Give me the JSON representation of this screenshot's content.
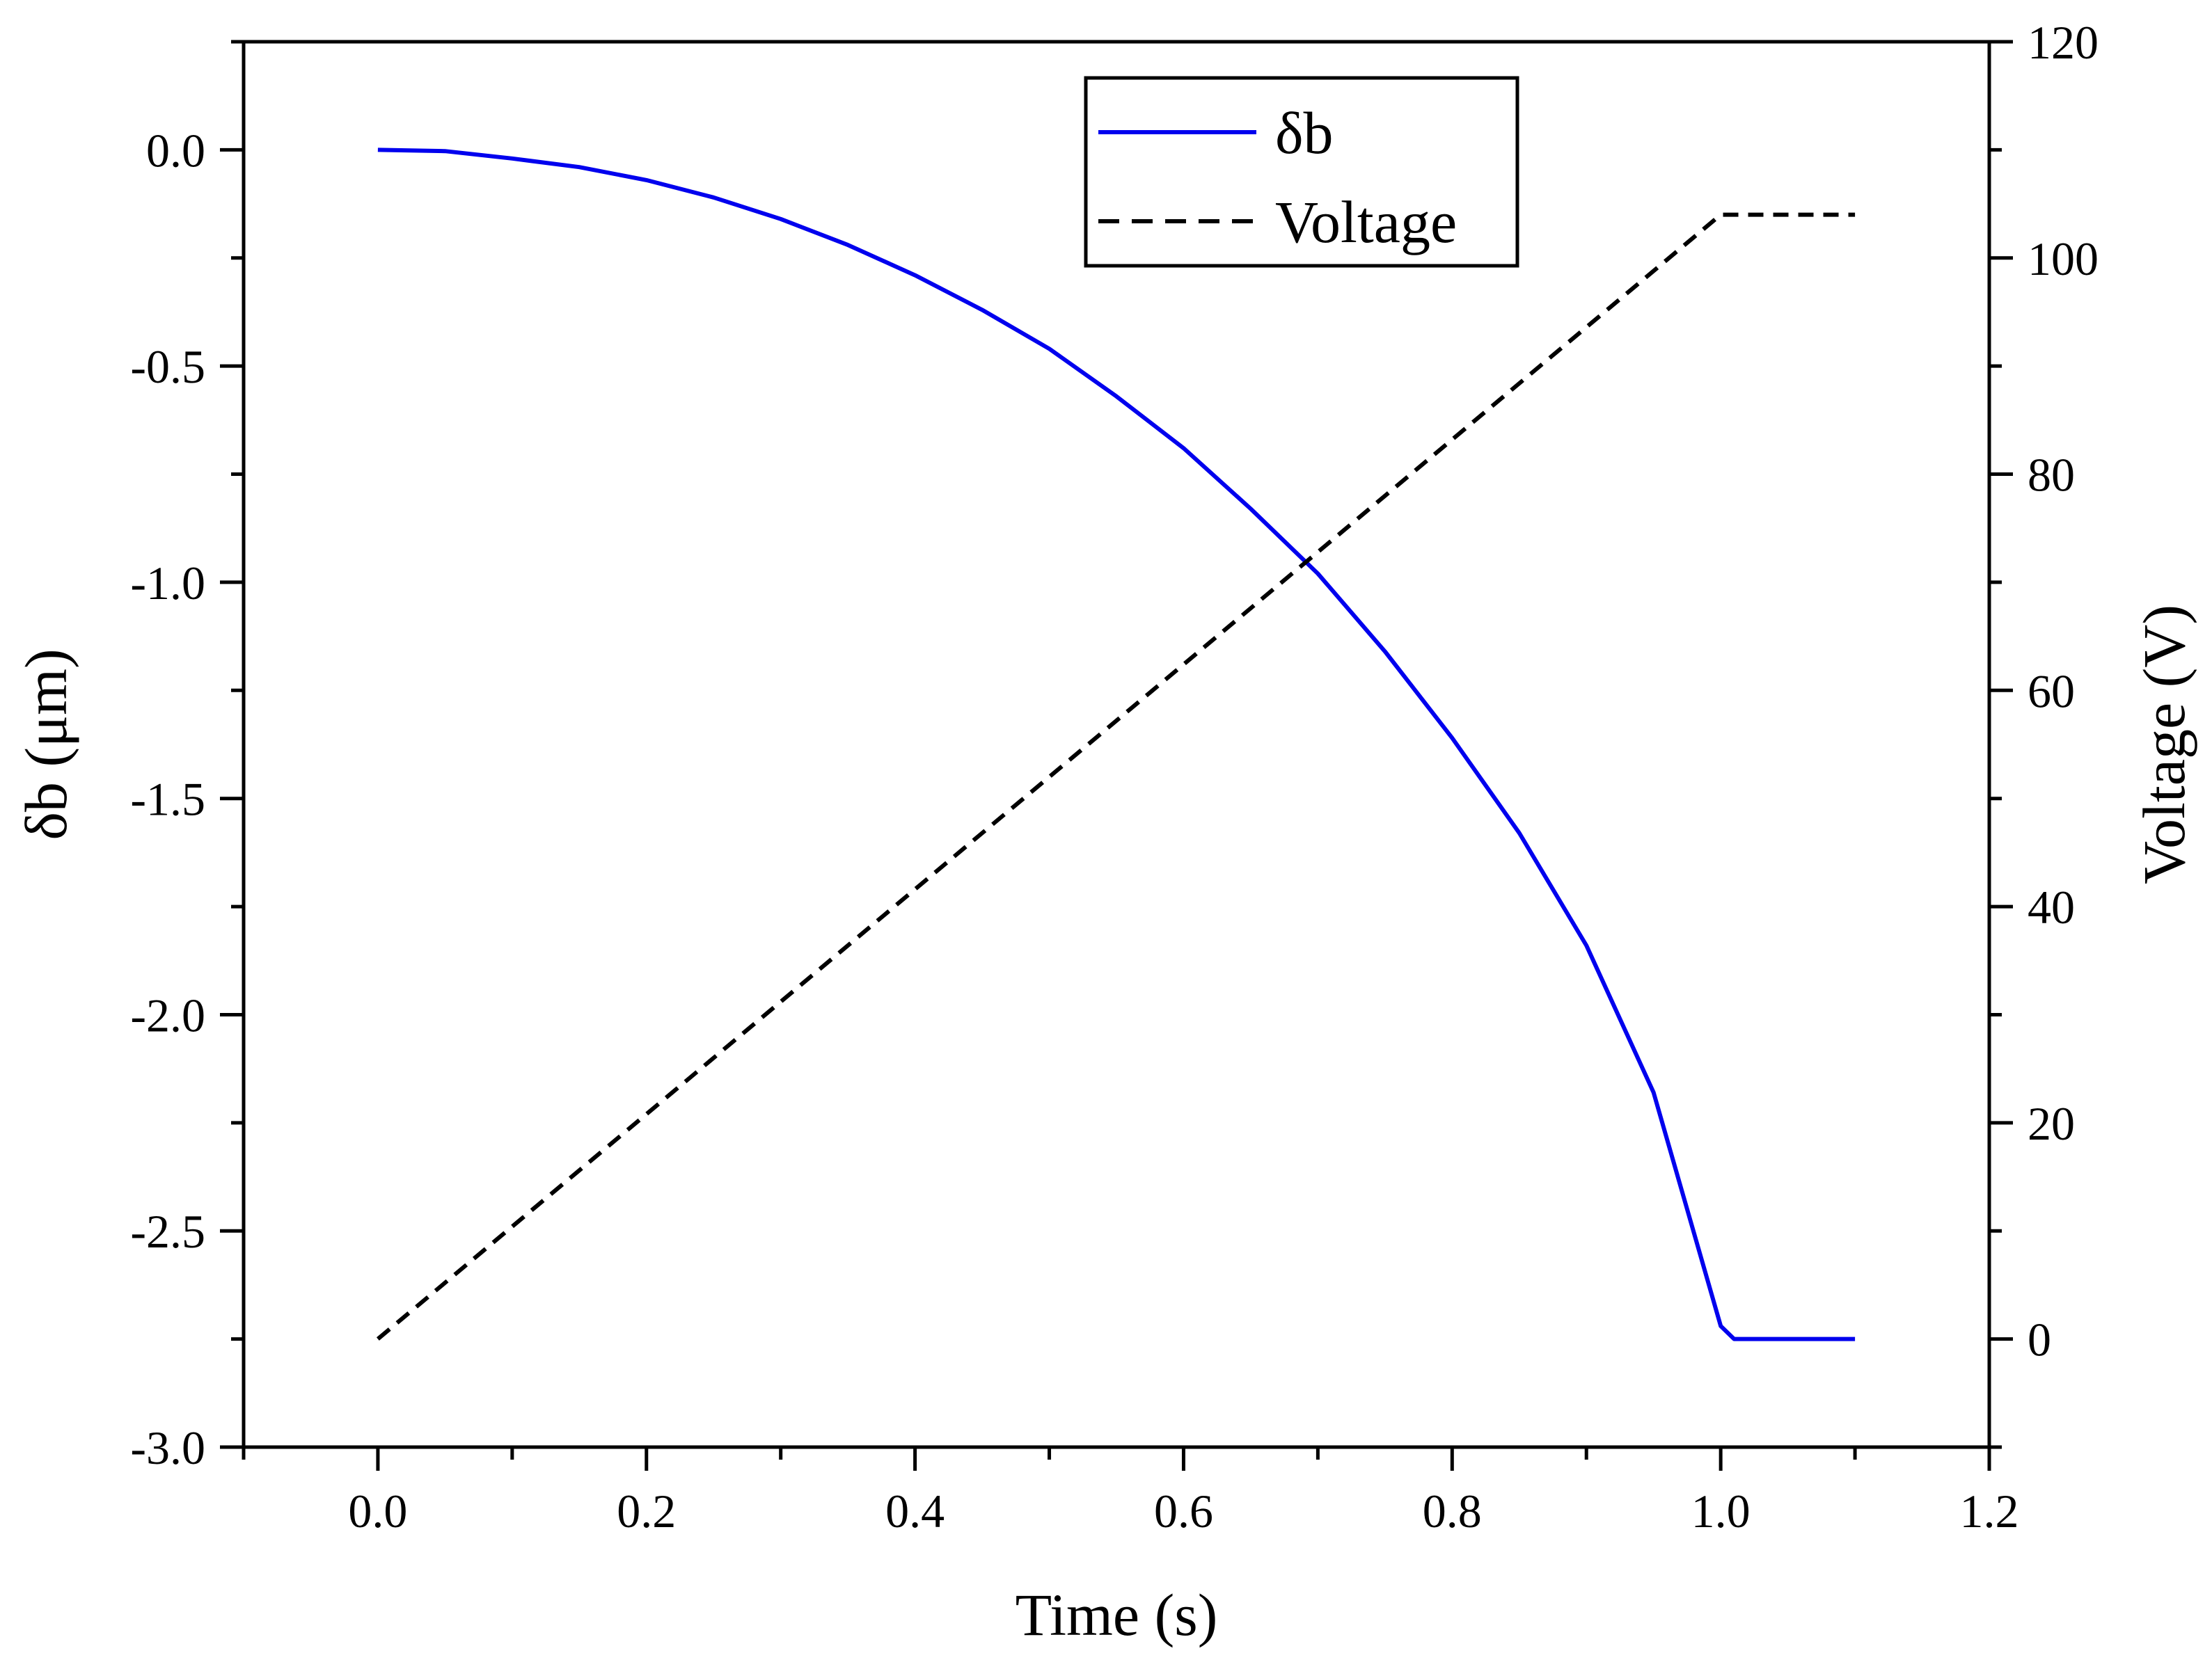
{
  "chart_data": {
    "type": "line",
    "title": "",
    "xlabel": "Time (s)",
    "ylabel_left": "δb (μm)",
    "ylabel_right": "Voltage (V)",
    "xlim": [
      -0.1,
      1.2
    ],
    "ylim_left": [
      -3.0,
      0.25
    ],
    "ylim_right": [
      -10,
      120
    ],
    "x_ticks": [
      "0.0",
      "0.2",
      "0.4",
      "0.6",
      "0.8",
      "1.0",
      "1.2"
    ],
    "x_tick_values": [
      0.0,
      0.2,
      0.4,
      0.6,
      0.8,
      1.0,
      1.2
    ],
    "y_left_ticks": [
      "0.0",
      "-0.5",
      "-1.0",
      "-1.5",
      "-2.0",
      "-2.5",
      "-3.0"
    ],
    "y_left_tick_values": [
      0.0,
      -0.5,
      -1.0,
      -1.5,
      -2.0,
      -2.5,
      -3.0
    ],
    "y_right_ticks": [
      "0",
      "20",
      "40",
      "60",
      "80",
      "100",
      "120"
    ],
    "y_right_tick_values": [
      0,
      20,
      40,
      60,
      80,
      100,
      120
    ],
    "grid": false,
    "legend_position": "top-center",
    "series": [
      {
        "name": "δb",
        "axis": "left",
        "color": "#0000ee",
        "style": "solid",
        "x": [
          0.0,
          0.05,
          0.1,
          0.15,
          0.2,
          0.25,
          0.3,
          0.35,
          0.4,
          0.45,
          0.5,
          0.55,
          0.6,
          0.65,
          0.7,
          0.75,
          0.8,
          0.85,
          0.9,
          0.95,
          1.0,
          1.01,
          1.05,
          1.1
        ],
        "values": [
          0.0,
          -0.003,
          -0.02,
          -0.04,
          -0.07,
          -0.11,
          -0.16,
          -0.22,
          -0.29,
          -0.37,
          -0.46,
          -0.57,
          -0.69,
          -0.83,
          -0.98,
          -1.16,
          -1.36,
          -1.58,
          -1.84,
          -2.18,
          -2.72,
          -2.75,
          -2.75,
          -2.75
        ]
      },
      {
        "name": "Voltage",
        "axis": "right",
        "color": "#000000",
        "style": "dashed",
        "x": [
          0.0,
          1.0,
          1.1
        ],
        "values": [
          0,
          104,
          104
        ]
      }
    ]
  }
}
